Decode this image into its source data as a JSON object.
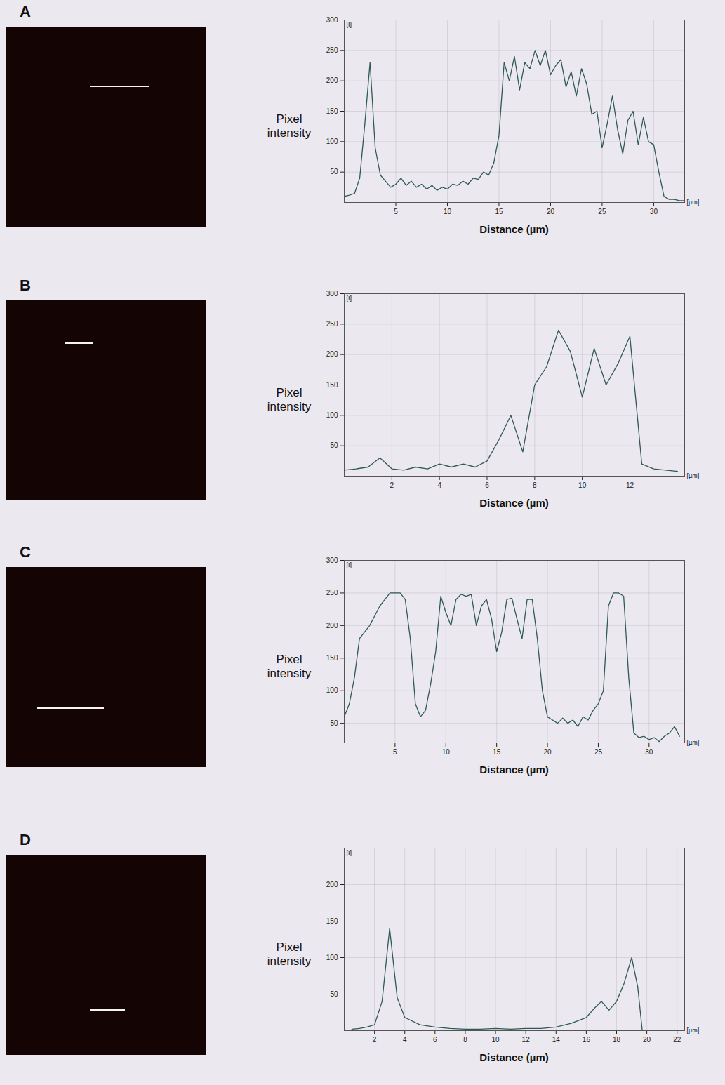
{
  "chart_data": [
    {
      "type": "line",
      "title": "A",
      "xlabel": "Distance (µm)",
      "ylabel": "Pixel intensity",
      "annotations": [
        "[I]",
        "[µm]"
      ],
      "color": "#2e5a55",
      "grid": true,
      "xlim": [
        0,
        33
      ],
      "xticks": [
        5,
        10,
        15,
        20,
        25,
        30
      ],
      "ylim": [
        0,
        300
      ],
      "yticks": [
        50,
        100,
        150,
        200,
        250,
        300
      ],
      "x": [
        0,
        0.5,
        1,
        1.5,
        2,
        2.5,
        3,
        3.5,
        4,
        4.5,
        5,
        5.5,
        6,
        6.5,
        7,
        7.5,
        8,
        8.5,
        9,
        9.5,
        10,
        10.5,
        11,
        11.5,
        12,
        12.5,
        13,
        13.5,
        14,
        14.5,
        15,
        15.5,
        16,
        16.5,
        17,
        17.5,
        18,
        18.5,
        19,
        19.5,
        20,
        20.5,
        21,
        21.5,
        22,
        22.5,
        23,
        23.5,
        24,
        24.5,
        25,
        25.5,
        26,
        26.5,
        27,
        27.5,
        28,
        28.5,
        29,
        29.5,
        30,
        30.5,
        31,
        31.5,
        32,
        32.5,
        33
      ],
      "values": [
        10,
        12,
        15,
        40,
        130,
        230,
        90,
        45,
        35,
        25,
        30,
        40,
        28,
        35,
        25,
        30,
        22,
        28,
        20,
        25,
        22,
        30,
        28,
        35,
        30,
        40,
        38,
        50,
        45,
        65,
        110,
        230,
        200,
        240,
        185,
        230,
        220,
        250,
        225,
        250,
        210,
        225,
        235,
        190,
        215,
        175,
        220,
        195,
        145,
        150,
        90,
        130,
        175,
        120,
        80,
        135,
        150,
        95,
        140,
        100,
        95,
        50,
        10,
        5,
        5,
        3,
        3
      ]
    },
    {
      "type": "line",
      "title": "B",
      "xlabel": "Distance (µm)",
      "ylabel": "Pixel intensity",
      "annotations": [
        "[I]",
        "[µm]"
      ],
      "color": "#2e5a55",
      "grid": true,
      "xlim": [
        0,
        14.3
      ],
      "xticks": [
        2,
        4,
        6,
        8,
        10,
        12
      ],
      "ylim": [
        0,
        300
      ],
      "yticks": [
        50,
        100,
        150,
        200,
        250,
        300
      ],
      "x": [
        0,
        0.5,
        1,
        1.5,
        2,
        2.5,
        3,
        3.5,
        4,
        4.5,
        5,
        5.5,
        6,
        6.5,
        7,
        7.5,
        8,
        8.5,
        9,
        9.5,
        10,
        10.5,
        11,
        11.5,
        12,
        12.5,
        13,
        13.5,
        14
      ],
      "values": [
        10,
        12,
        15,
        30,
        12,
        10,
        15,
        12,
        20,
        15,
        20,
        15,
        25,
        60,
        100,
        40,
        150,
        180,
        240,
        205,
        130,
        210,
        150,
        185,
        230,
        20,
        12,
        10,
        8
      ]
    },
    {
      "type": "line",
      "title": "C",
      "xlabel": "Distance (µm)",
      "ylabel": "Pixel intensity",
      "annotations": [
        "[I]",
        "[µm]"
      ],
      "color": "#2e5a55",
      "grid": true,
      "xlim": [
        0,
        33.5
      ],
      "xticks": [
        5,
        10,
        15,
        20,
        25,
        30
      ],
      "ylim": [
        20,
        300
      ],
      "yticks": [
        50,
        100,
        150,
        200,
        250,
        300
      ],
      "x": [
        0,
        0.5,
        1,
        1.5,
        2,
        2.5,
        3,
        3.5,
        4,
        4.5,
        5,
        5.5,
        6,
        6.5,
        7,
        7.5,
        8,
        8.5,
        9,
        9.5,
        10,
        10.5,
        11,
        11.5,
        12,
        12.5,
        13,
        13.5,
        14,
        14.5,
        15,
        15.5,
        16,
        16.5,
        17,
        17.5,
        18,
        18.5,
        19,
        19.5,
        20,
        20.5,
        21,
        21.5,
        22,
        22.5,
        23,
        23.5,
        24,
        24.5,
        25,
        25.5,
        26,
        26.5,
        27,
        27.5,
        28,
        28.5,
        29,
        29.5,
        30,
        30.5,
        31,
        31.5,
        32,
        32.5,
        33
      ],
      "values": [
        60,
        80,
        120,
        180,
        190,
        200,
        215,
        230,
        240,
        250,
        250,
        250,
        240,
        180,
        80,
        60,
        70,
        110,
        160,
        245,
        220,
        200,
        240,
        248,
        245,
        248,
        200,
        230,
        240,
        210,
        160,
        190,
        240,
        242,
        210,
        180,
        240,
        240,
        180,
        100,
        60,
        55,
        50,
        58,
        50,
        55,
        45,
        60,
        55,
        70,
        80,
        100,
        230,
        250,
        250,
        245,
        120,
        35,
        28,
        30,
        25,
        28,
        22,
        30,
        35,
        45,
        30
      ]
    },
    {
      "type": "line",
      "title": "D",
      "xlabel": "Distance (µm)",
      "ylabel": "Pixel intensity",
      "annotations": [
        "[I]",
        "[µm]"
      ],
      "color": "#2e5a55",
      "grid": true,
      "xlim": [
        0,
        22.5
      ],
      "xticks": [
        2,
        4,
        6,
        8,
        10,
        12,
        14,
        16,
        18,
        20,
        22
      ],
      "ylim": [
        0,
        250
      ],
      "yticks": [
        50,
        100,
        150,
        200
      ],
      "x": [
        0.5,
        1,
        1.5,
        2,
        2.5,
        3,
        3.5,
        4,
        5,
        6,
        7,
        8,
        9,
        10,
        11,
        12,
        13,
        14,
        15,
        16,
        16.5,
        17,
        17.5,
        18,
        18.5,
        19,
        19.4,
        19.7
      ],
      "values": [
        2,
        3,
        5,
        8,
        40,
        140,
        45,
        18,
        8,
        5,
        3,
        2,
        2,
        3,
        2,
        3,
        3,
        5,
        10,
        18,
        30,
        40,
        28,
        40,
        65,
        100,
        60,
        0
      ]
    }
  ]
}
